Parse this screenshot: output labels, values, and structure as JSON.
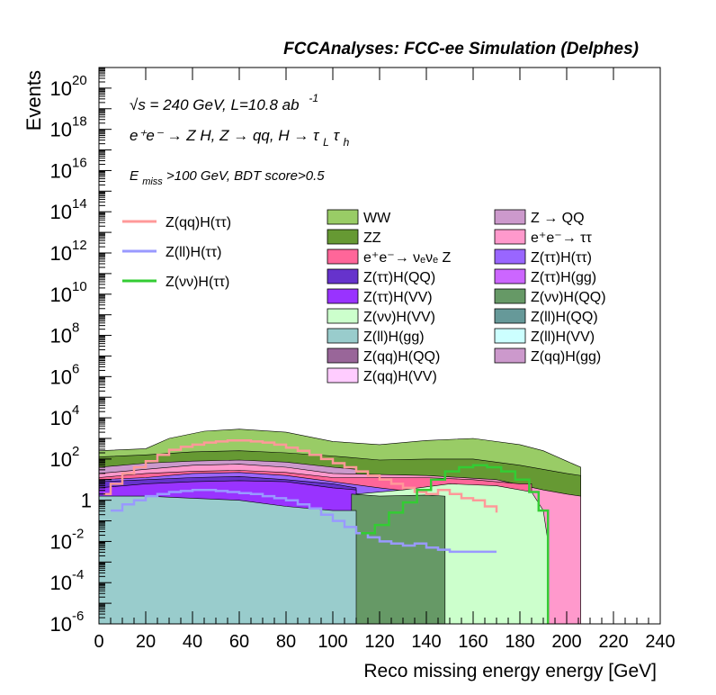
{
  "chart_data": {
    "type": "area",
    "header": "FCCAnalyses: FCC-ee Simulation (Delphes)",
    "annotations": {
      "energy_line": "√s = 240 GeV, L=10.8 ab",
      "energy_line_sup": "-1",
      "process_line": "e⁺e⁻ → Z H, Z → qq, H → τ",
      "process_sub1": "L",
      "process_tau2": "τ",
      "process_sub2": "h",
      "cut_line_pre": "E",
      "cut_line_sub": "miss",
      "cut_line_post": ">100 GeV, BDT score>0.5"
    },
    "xlabel": "Reco missing energy energy [GeV]",
    "ylabel": "Events",
    "xlim": [
      0,
      240
    ],
    "ylim_log10": [
      -6,
      21
    ],
    "log_y": true,
    "grid": false,
    "x_ticks": [
      "0",
      "20",
      "40",
      "60",
      "80",
      "100",
      "120",
      "140",
      "160",
      "180",
      "200",
      "220",
      "240"
    ],
    "y_ticks": [
      {
        "base": "10",
        "exp": "-6",
        "log10": -6
      },
      {
        "base": "10",
        "exp": "-4",
        "log10": -4
      },
      {
        "base": "10",
        "exp": "-2",
        "log10": -2
      },
      {
        "base": "1",
        "exp": "",
        "log10": 0
      },
      {
        "base": "10",
        "exp": "2",
        "log10": 2
      },
      {
        "base": "10",
        "exp": "4",
        "log10": 4
      },
      {
        "base": "10",
        "exp": "6",
        "log10": 6
      },
      {
        "base": "10",
        "exp": "8",
        "log10": 8
      },
      {
        "base": "10",
        "exp": "10",
        "log10": 10
      },
      {
        "base": "10",
        "exp": "12",
        "log10": 12
      },
      {
        "base": "10",
        "exp": "14",
        "log10": 14
      },
      {
        "base": "10",
        "exp": "16",
        "log10": 16
      },
      {
        "base": "10",
        "exp": "18",
        "log10": 18
      },
      {
        "base": "10",
        "exp": "20",
        "log10": 20
      }
    ],
    "stack_envelopes_log10": [
      {
        "name": "WW",
        "color": "#99cc66",
        "points": [
          [
            0,
            2.4
          ],
          [
            20,
            2.5
          ],
          [
            30,
            3.0
          ],
          [
            45,
            3.35
          ],
          [
            60,
            3.45
          ],
          [
            80,
            3.3
          ],
          [
            100,
            2.85
          ],
          [
            120,
            2.7
          ],
          [
            140,
            2.9
          ],
          [
            160,
            3.0
          ],
          [
            180,
            2.7
          ],
          [
            190,
            2.4
          ],
          [
            200,
            1.9
          ],
          [
            206,
            1.6
          ],
          [
            206,
            -6
          ],
          [
            0,
            -6
          ]
        ]
      },
      {
        "name": "ZZ",
        "color": "#669933",
        "points": [
          [
            0,
            2.1
          ],
          [
            20,
            2.2
          ],
          [
            40,
            2.35
          ],
          [
            60,
            2.4
          ],
          [
            80,
            2.3
          ],
          [
            100,
            2.15
          ],
          [
            120,
            1.95
          ],
          [
            140,
            2.0
          ],
          [
            160,
            2.0
          ],
          [
            180,
            1.7
          ],
          [
            200,
            1.3
          ],
          [
            206,
            1.2
          ],
          [
            206,
            -6
          ],
          [
            0,
            -6
          ]
        ]
      },
      {
        "name": "Z → QQ",
        "color": "#cc99cc",
        "points": [
          [
            0,
            1.6
          ],
          [
            20,
            1.8
          ],
          [
            40,
            1.9
          ],
          [
            60,
            1.95
          ],
          [
            80,
            1.85
          ],
          [
            100,
            1.6
          ],
          [
            110,
            1.5
          ],
          [
            110,
            -6
          ],
          [
            0,
            -6
          ]
        ]
      },
      {
        "name": "e⁺e⁻ → ττ",
        "color": "#ff99cc",
        "points": [
          [
            0,
            1.3
          ],
          [
            20,
            1.5
          ],
          [
            40,
            1.7
          ],
          [
            60,
            1.75
          ],
          [
            80,
            1.6
          ],
          [
            100,
            1.3
          ],
          [
            140,
            1.2
          ],
          [
            170,
            1.0
          ],
          [
            190,
            0.5
          ],
          [
            200,
            0.3
          ],
          [
            206,
            0.2
          ],
          [
            206,
            -6
          ],
          [
            0,
            -6
          ]
        ]
      },
      {
        "name": "e⁺e⁻ → νₑνₑ Z",
        "color": "#ff6699",
        "points": [
          [
            0,
            1.1
          ],
          [
            20,
            1.3
          ],
          [
            40,
            1.4
          ],
          [
            60,
            1.45
          ],
          [
            80,
            1.35
          ],
          [
            100,
            1.1
          ],
          [
            140,
            1.1
          ],
          [
            160,
            1.0
          ],
          [
            180,
            0.8
          ],
          [
            185,
            0.8
          ],
          [
            185,
            -6
          ],
          [
            0,
            -6
          ]
        ]
      },
      {
        "name": "Z(ττ)H(ττ)",
        "color": "#9966ff",
        "points": [
          [
            0,
            1.0
          ],
          [
            20,
            1.1
          ],
          [
            40,
            1.3
          ],
          [
            60,
            1.35
          ],
          [
            80,
            1.2
          ],
          [
            100,
            0.9
          ],
          [
            120,
            0.6
          ],
          [
            135,
            0.4
          ],
          [
            135,
            -6
          ],
          [
            0,
            -6
          ]
        ]
      },
      {
        "name": "Z(ττ)H(QQ)",
        "color": "#6633cc",
        "points": [
          [
            0,
            0.9
          ],
          [
            20,
            1.0
          ],
          [
            40,
            1.1
          ],
          [
            60,
            1.15
          ],
          [
            80,
            1.0
          ],
          [
            100,
            0.8
          ],
          [
            110,
            0.6
          ],
          [
            110,
            -6
          ],
          [
            0,
            -6
          ]
        ]
      },
      {
        "name": "Z(ττ)H(VV)",
        "color": "#9933ff",
        "points": [
          [
            0,
            0.6
          ],
          [
            20,
            0.8
          ],
          [
            40,
            0.9
          ],
          [
            60,
            0.95
          ],
          [
            80,
            0.9
          ],
          [
            100,
            0.6
          ],
          [
            110,
            0.5
          ],
          [
            110,
            -6
          ],
          [
            0,
            -6
          ]
        ]
      },
      {
        "name": "Z(νν)H(VV)",
        "color": "#ccffcc",
        "points": [
          [
            110,
            0.3
          ],
          [
            130,
            0.5
          ],
          [
            150,
            0.8
          ],
          [
            170,
            0.7
          ],
          [
            185,
            0.4
          ],
          [
            190,
            -0.5
          ],
          [
            192,
            -2
          ],
          [
            192,
            -6
          ],
          [
            110,
            -6
          ]
        ]
      },
      {
        "name": "Z(νν)H(QQ)",
        "color": "#669966",
        "points": [
          [
            108,
            0.3
          ],
          [
            120,
            0.2
          ],
          [
            140,
            0.25
          ],
          [
            148,
            0.2
          ],
          [
            148,
            -6
          ],
          [
            108,
            -6
          ]
        ]
      },
      {
        "name": "Z(ll)H(gg)",
        "color": "#99cccc",
        "points": [
          [
            0,
            0.2
          ],
          [
            20,
            0.2
          ],
          [
            40,
            0.1
          ],
          [
            60,
            0.0
          ],
          [
            80,
            -0.3
          ],
          [
            100,
            -0.5
          ],
          [
            110,
            -0.5
          ],
          [
            110,
            -6
          ],
          [
            0,
            -6
          ]
        ]
      }
    ],
    "lines": [
      {
        "name": "Z(qq)H(ττ)",
        "color": "#ff9999",
        "x": [
          2,
          5,
          10,
          15,
          20,
          25,
          30,
          35,
          40,
          45,
          50,
          55,
          60,
          65,
          70,
          75,
          80,
          85,
          90,
          95,
          100,
          105,
          110,
          115,
          120,
          125,
          130,
          135,
          140,
          145,
          150,
          155,
          160,
          165,
          170
        ],
        "log10": [
          0.3,
          0.8,
          1.3,
          1.6,
          1.9,
          2.2,
          2.45,
          2.6,
          2.7,
          2.8,
          2.85,
          2.9,
          2.9,
          2.85,
          2.8,
          2.7,
          2.55,
          2.4,
          2.2,
          2.0,
          1.8,
          1.6,
          1.4,
          1.2,
          1.0,
          0.8,
          0.6,
          0.4,
          0.3,
          0.5,
          0.3,
          0.1,
          0.0,
          -0.3,
          -0.6
        ]
      },
      {
        "name": "Z(ll)H(ττ)",
        "color": "#9999ff",
        "x": [
          5,
          10,
          15,
          20,
          25,
          30,
          35,
          40,
          45,
          50,
          55,
          60,
          65,
          70,
          75,
          80,
          85,
          90,
          95,
          100,
          105,
          110,
          115,
          120,
          125,
          130,
          135,
          140,
          145,
          150,
          155,
          160,
          165,
          170
        ],
        "log10": [
          -0.5,
          -0.2,
          0.0,
          0.2,
          0.3,
          0.4,
          0.45,
          0.5,
          0.5,
          0.45,
          0.4,
          0.35,
          0.3,
          0.2,
          0.1,
          0.0,
          -0.2,
          -0.4,
          -0.7,
          -1.0,
          -1.3,
          -1.6,
          -1.8,
          -2.0,
          -2.1,
          -2.2,
          -2.1,
          -2.3,
          -2.4,
          -2.5,
          -2.5,
          -2.5,
          -2.5,
          -2.5
        ]
      },
      {
        "name": "Z(νν)H(ττ)",
        "color": "#33cc33",
        "x": [
          112,
          118,
          124,
          130,
          136,
          142,
          148,
          154,
          160,
          166,
          172,
          178,
          184,
          188,
          192
        ],
        "log10": [
          -1.6,
          -1.2,
          -0.6,
          -0.1,
          0.5,
          1.0,
          1.4,
          1.6,
          1.7,
          1.6,
          1.4,
          1.0,
          0.4,
          -0.5,
          -6
        ]
      }
    ],
    "legend_lines": [
      {
        "name": "Z(qq)H(ττ)",
        "color": "#ff9999"
      },
      {
        "name": "Z(ll)H(ττ)",
        "color": "#9999ff"
      },
      {
        "name": "Z(νν)H(ττ)",
        "color": "#33cc33"
      }
    ],
    "legend_col1": [
      {
        "name": "WW",
        "color": "#99cc66"
      },
      {
        "name": "ZZ",
        "color": "#669933"
      },
      {
        "name": "e⁺e⁻→ νₑνₑ Z",
        "color": "#ff6699"
      },
      {
        "name": "Z(ττ)H(QQ)",
        "color": "#6633cc"
      },
      {
        "name": "Z(ττ)H(VV)",
        "color": "#9933ff"
      },
      {
        "name": "Z(νν)H(VV)",
        "color": "#ccffcc"
      },
      {
        "name": "Z(ll)H(gg)",
        "color": "#99cccc"
      },
      {
        "name": "Z(qq)H(QQ)",
        "color": "#996699"
      },
      {
        "name": "Z(qq)H(VV)",
        "color": "#ffccff"
      }
    ],
    "legend_col2": [
      {
        "name": "Z → QQ",
        "color": "#cc99cc"
      },
      {
        "name": "e⁺e⁻→ ττ",
        "color": "#ff99cc"
      },
      {
        "name": "Z(ττ)H(ττ)",
        "color": "#9966ff"
      },
      {
        "name": "Z(ττ)H(gg)",
        "color": "#cc66ff"
      },
      {
        "name": "Z(νν)H(QQ)",
        "color": "#669966"
      },
      {
        "name": "Z(ll)H(QQ)",
        "color": "#669999"
      },
      {
        "name": "Z(ll)H(VV)",
        "color": "#ccffff"
      },
      {
        "name": "Z(qq)H(gg)",
        "color": "#cc99cc"
      }
    ]
  }
}
